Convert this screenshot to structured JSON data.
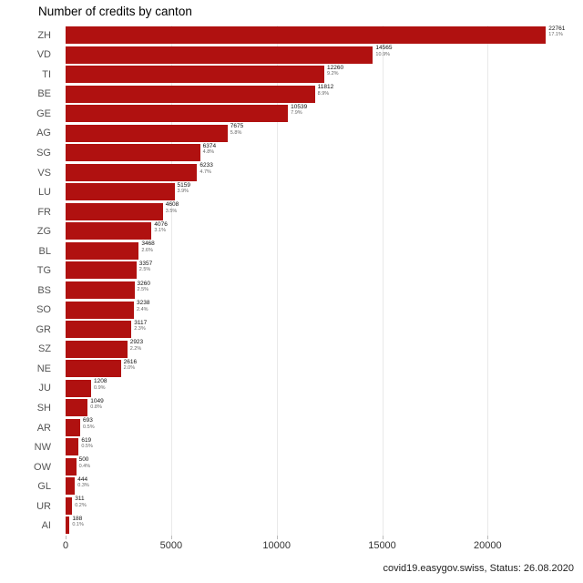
{
  "chart_data": {
    "type": "bar",
    "orientation": "horizontal",
    "title": "Number of credits by canton",
    "categories": [
      "ZH",
      "VD",
      "TI",
      "BE",
      "GE",
      "AG",
      "SG",
      "VS",
      "LU",
      "FR",
      "ZG",
      "BL",
      "TG",
      "BS",
      "SO",
      "GR",
      "SZ",
      "NE",
      "JU",
      "SH",
      "AR",
      "NW",
      "OW",
      "GL",
      "UR",
      "AI"
    ],
    "values": [
      22761,
      14565,
      12260,
      11812,
      10539,
      7675,
      6374,
      6233,
      5159,
      4608,
      4076,
      3468,
      3357,
      3260,
      3238,
      3117,
      2923,
      2616,
      1208,
      1049,
      693,
      619,
      500,
      444,
      311,
      188
    ],
    "pct_labels": [
      "17.1%",
      "10.9%",
      "9.2%",
      "8.9%",
      "7.9%",
      "5.8%",
      "4.8%",
      "4.7%",
      "3.9%",
      "3.5%",
      "3.1%",
      "2.6%",
      "2.5%",
      "2.5%",
      "2.4%",
      "2.3%",
      "2.2%",
      "2.0%",
      "0.9%",
      "0.8%",
      "0.5%",
      "0.5%",
      "0.4%",
      "0.3%",
      "0.2%",
      "0.1%"
    ],
    "x_ticks": [
      0,
      5000,
      10000,
      15000,
      20000
    ],
    "xlim": [
      0,
      24000
    ],
    "xlabel": "",
    "ylabel": "",
    "grid": true,
    "legend": false,
    "bar_color": "#b01110",
    "footer": "covid19.easygov.swiss, Status: 26.08.2020"
  }
}
